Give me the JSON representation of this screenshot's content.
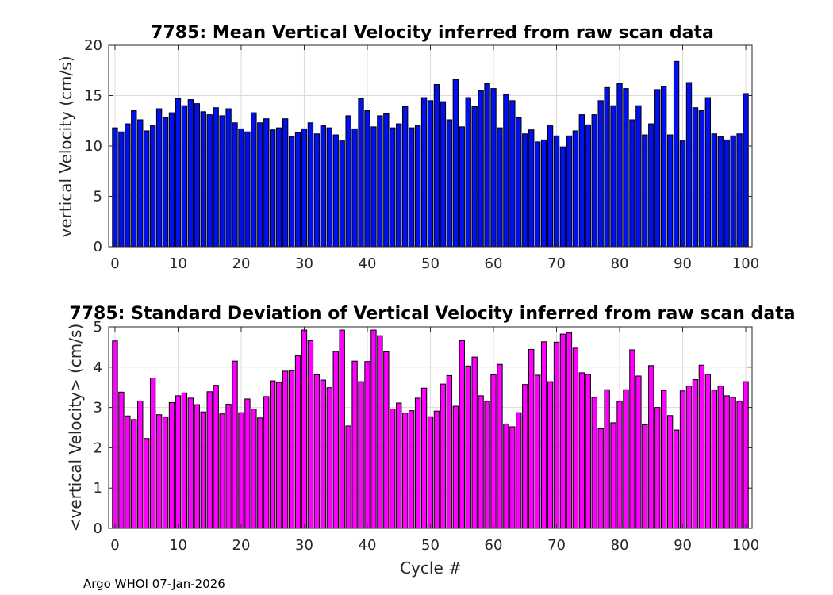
{
  "chart_data": [
    {
      "type": "bar",
      "title": "7785: Mean Vertical Velocity inferred from raw scan data",
      "xlabel": "",
      "ylabel": "vertical Velocity (cm/s)",
      "xlim": [
        -1,
        101
      ],
      "ylim": [
        0,
        20
      ],
      "xticks": [
        "0",
        "10",
        "20",
        "30",
        "40",
        "50",
        "60",
        "70",
        "80",
        "90",
        "100"
      ],
      "yticks": [
        "0",
        "5",
        "10",
        "15",
        "20"
      ],
      "grid": true,
      "color": "#0010ee",
      "x_start": 0,
      "values": [
        11.8,
        11.4,
        12.2,
        13.5,
        12.6,
        11.5,
        12.0,
        13.7,
        12.8,
        13.3,
        14.7,
        14.0,
        14.6,
        14.2,
        13.4,
        13.1,
        13.8,
        13.0,
        13.7,
        12.3,
        11.7,
        11.4,
        13.3,
        12.3,
        12.7,
        11.6,
        11.8,
        12.7,
        10.9,
        11.3,
        11.7,
        12.3,
        11.2,
        12.0,
        11.8,
        11.1,
        10.5,
        13.0,
        11.7,
        14.7,
        13.5,
        11.9,
        13.0,
        13.2,
        11.8,
        12.2,
        13.9,
        11.8,
        12.0,
        14.8,
        14.5,
        16.1,
        14.4,
        12.6,
        16.6,
        11.9,
        14.8,
        13.9,
        15.5,
        16.2,
        15.7,
        11.8,
        15.1,
        14.5,
        12.8,
        11.2,
        11.6,
        10.4,
        10.6,
        12.0,
        11.0,
        9.9,
        11.0,
        11.5,
        13.1,
        12.1,
        13.1,
        14.5,
        15.8,
        14.0,
        16.2,
        15.7,
        12.6,
        14.0,
        11.1,
        12.2,
        15.6,
        15.9,
        11.1,
        18.4,
        10.5,
        16.3,
        13.8,
        13.5,
        14.8,
        11.2,
        10.9,
        10.6,
        11.0,
        11.2,
        15.2
      ]
    },
    {
      "type": "bar",
      "title": "7785: Standard Deviation of Vertical Velocity inferred from raw scan data",
      "xlabel": "Cycle #",
      "ylabel": "<vertical Velocity> (cm/s)",
      "xlim": [
        -1,
        101
      ],
      "ylim": [
        0,
        5
      ],
      "xticks": [
        "0",
        "10",
        "20",
        "30",
        "40",
        "50",
        "60",
        "70",
        "80",
        "90",
        "100"
      ],
      "yticks": [
        "0",
        "1",
        "2",
        "3",
        "4",
        "5"
      ],
      "grid": true,
      "color": "#ff00ff",
      "x_start": 0,
      "values": [
        4.65,
        3.38,
        2.79,
        2.7,
        3.16,
        2.23,
        3.73,
        2.82,
        2.76,
        3.12,
        3.29,
        3.36,
        3.23,
        3.07,
        2.89,
        3.39,
        3.55,
        2.84,
        3.08,
        4.15,
        2.87,
        3.21,
        2.96,
        2.74,
        3.27,
        3.66,
        3.62,
        3.9,
        3.91,
        4.28,
        4.92,
        4.66,
        3.81,
        3.68,
        3.49,
        4.39,
        4.92,
        2.54,
        4.15,
        3.64,
        4.14,
        4.92,
        4.78,
        4.38,
        2.96,
        3.11,
        2.86,
        2.92,
        3.23,
        3.48,
        2.77,
        2.91,
        3.58,
        3.79,
        3.03,
        4.66,
        4.03,
        4.25,
        3.29,
        3.15,
        3.81,
        4.07,
        2.59,
        2.52,
        2.87,
        3.57,
        4.44,
        3.8,
        4.63,
        3.64,
        4.62,
        4.82,
        4.85,
        4.47,
        3.86,
        3.82,
        3.25,
        2.47,
        3.44,
        2.62,
        3.15,
        3.44,
        4.43,
        3.78,
        2.57,
        4.04,
        3.0,
        3.42,
        2.8,
        2.44,
        3.41,
        3.53,
        3.69,
        4.05,
        3.82,
        3.43,
        3.53,
        3.29,
        3.25,
        3.15,
        3.64
      ]
    }
  ],
  "footer": {
    "text": "Argo WHOI 07-Jan-2026"
  }
}
